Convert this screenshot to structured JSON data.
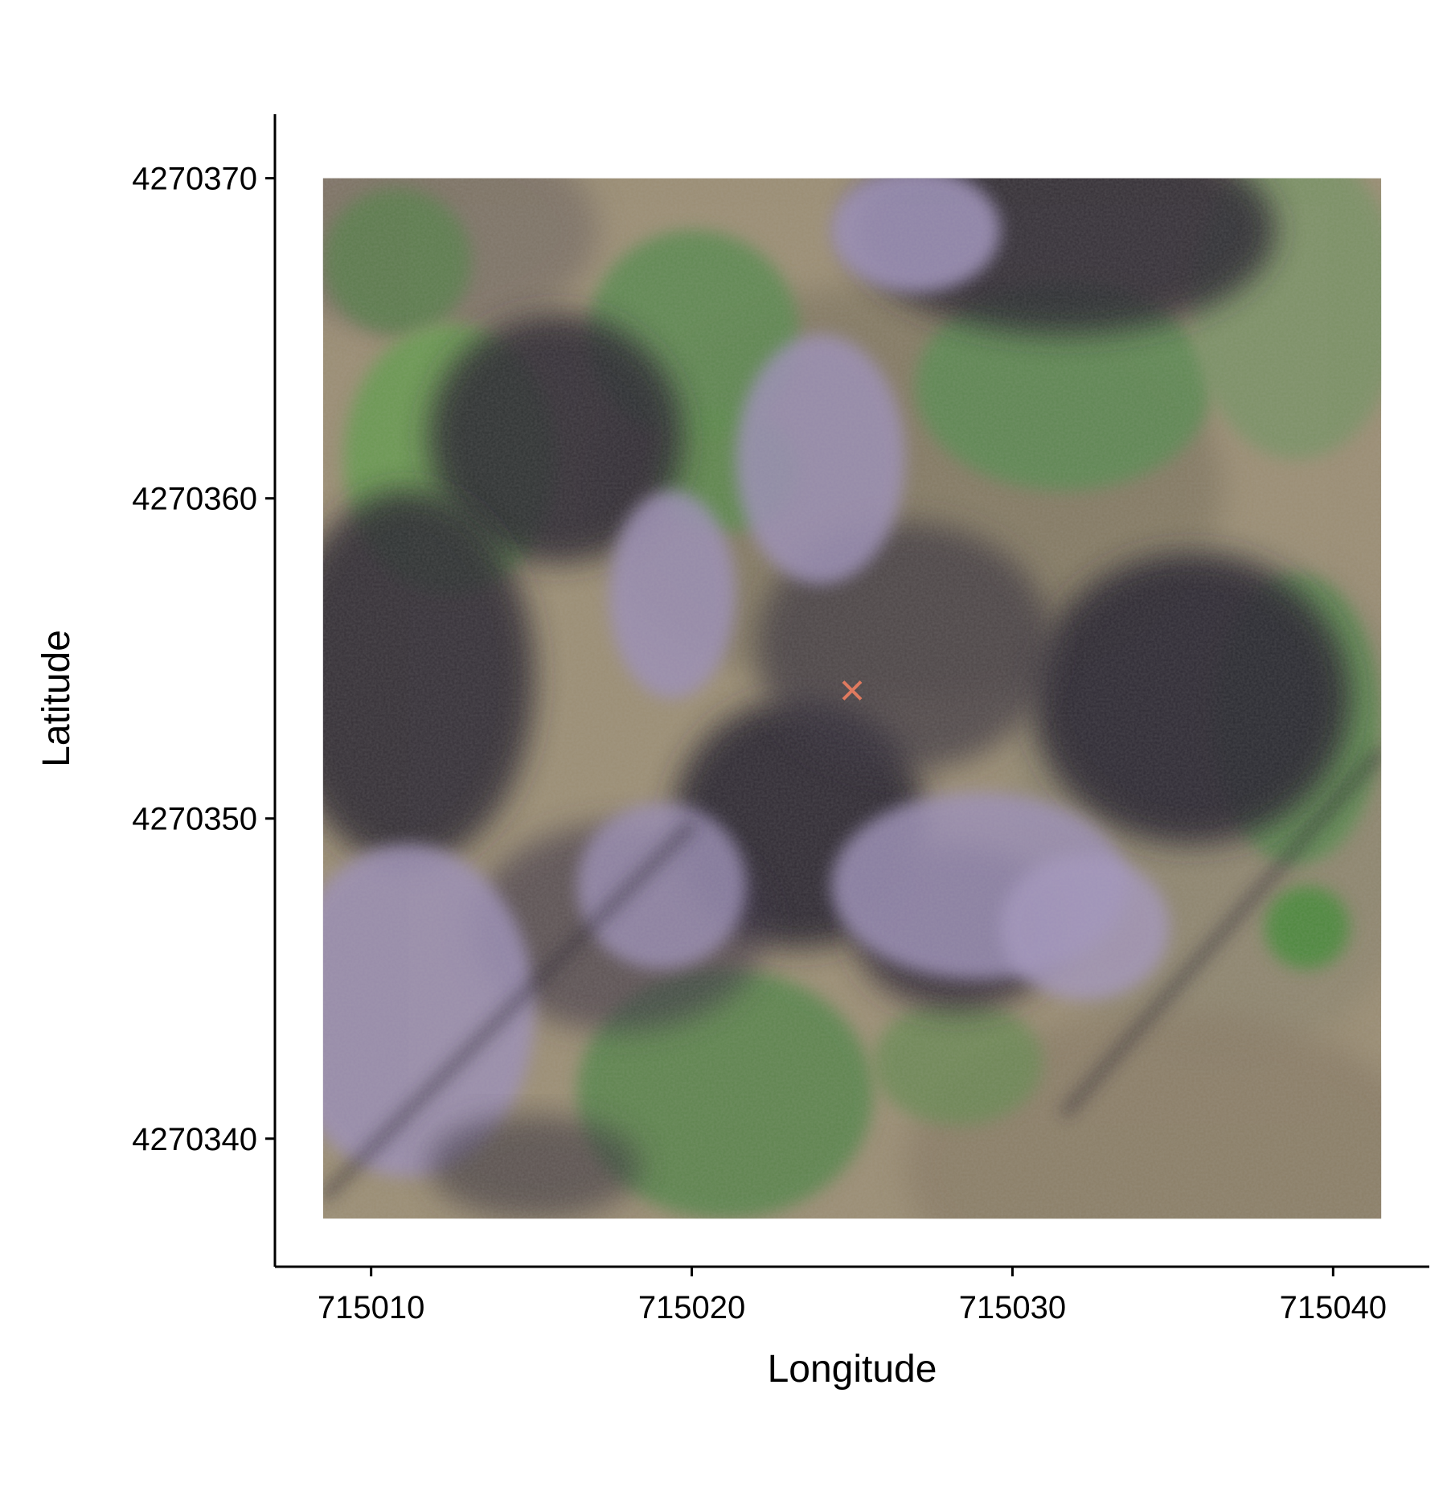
{
  "chart_data": {
    "type": "raster",
    "xlabel": "Longitude",
    "ylabel": "Latitude",
    "xlim": [
      715007,
      715043
    ],
    "ylim": [
      4270336,
      4270372
    ],
    "raster_extent": {
      "x": [
        715008.5,
        715041.5
      ],
      "y": [
        4270337.5,
        4270370
      ]
    },
    "x_ticks": [
      {
        "value": 715010,
        "label": "715010"
      },
      {
        "value": 715020,
        "label": "715020"
      },
      {
        "value": 715030,
        "label": "715030"
      },
      {
        "value": 715040,
        "label": "715040"
      }
    ],
    "y_ticks": [
      {
        "value": 4270370,
        "label": "4270370"
      },
      {
        "value": 4270360,
        "label": "4270360"
      },
      {
        "value": 4270350,
        "label": "4270350"
      },
      {
        "value": 4270340,
        "label": "4270340"
      }
    ],
    "marker": {
      "type": "x",
      "x": 715025,
      "y": 4270354,
      "color": "#e07a5f"
    },
    "image": "aerial RGB orthophoto of forest canopy with green tree crowns, dark shadows, purple-grey deciduous crowns and tan ground",
    "grid": false,
    "colors": {
      "green": "#6f9a5a",
      "shadow": "#2a2530",
      "purple": "#9b8fb5",
      "ground": "#9c8f76"
    }
  }
}
